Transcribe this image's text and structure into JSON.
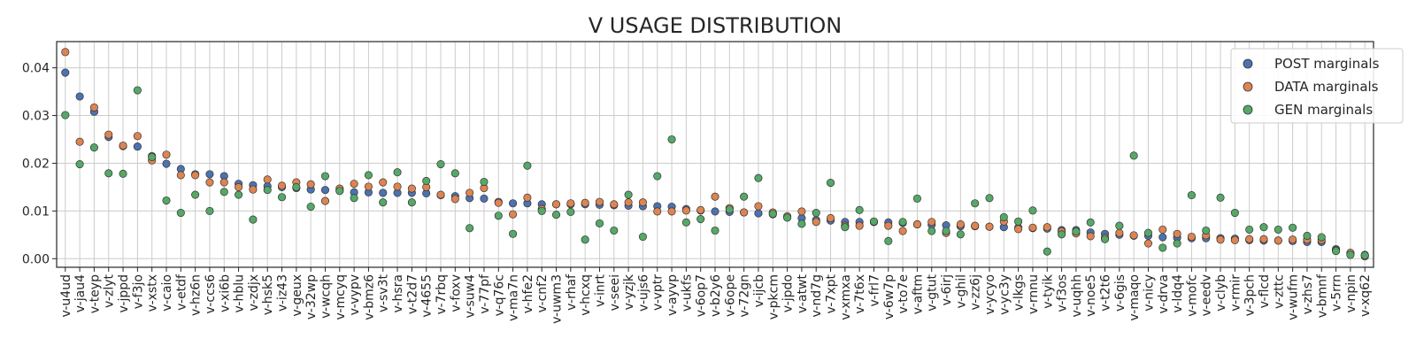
{
  "chart_data": {
    "type": "scatter",
    "title": "V USAGE DISTRIBUTION",
    "xlabel": "",
    "ylabel": "",
    "ylim": [
      -0.0018,
      0.0455
    ],
    "yticks": [
      "0.00",
      "0.01",
      "0.02",
      "0.03",
      "0.04"
    ],
    "grid": true,
    "legend_position": "top-right",
    "categories": [
      "v-u4ud",
      "v-jau4",
      "v-teyp",
      "v-zlyt",
      "v-jppd",
      "v-f3jo",
      "v-xstx",
      "v-caio",
      "v-etdf",
      "v-hz6n",
      "v-ccs6",
      "v-xi6b",
      "v-hblu",
      "v-zdjx",
      "v-hsk5",
      "v-iz43",
      "v-geux",
      "v-32wp",
      "v-wcqh",
      "v-mcyq",
      "v-vypv",
      "v-bmz6",
      "v-sv3t",
      "v-hsra",
      "v-t2d7",
      "v-4655",
      "v-7rbq",
      "v-foxv",
      "v-suw4",
      "v-77pf",
      "v-q76c",
      "v-ma7n",
      "v-hfe2",
      "v-cnf2",
      "v-uwm3",
      "v-rhaf",
      "v-hcxq",
      "v-inrt",
      "v-seei",
      "v-yzjk",
      "v-ujs6",
      "v-vptr",
      "v-ayvp",
      "v-ukfs",
      "v-6op7",
      "v-b2y6",
      "v-6ope",
      "v-72gn",
      "v-ijcb",
      "v-pkcm",
      "v-jpdo",
      "v-atwt",
      "v-nd7g",
      "v-7xpt",
      "v-xmxa",
      "v-7t6x",
      "v-frl7",
      "v-6w7p",
      "v-to7e",
      "v-aftm",
      "v-gtut",
      "v-6irj",
      "v-ghil",
      "v-zz6j",
      "v-ycyo",
      "v-yc3y",
      "v-lkgs",
      "v-rnnu",
      "v-tyik",
      "v-f3os",
      "v-uqhh",
      "v-noe5",
      "v-t2t6",
      "v-6gis",
      "v-maqo",
      "v-nicy",
      "v-drva",
      "v-ldq4",
      "v-mofc",
      "v-eedv",
      "v-clyb",
      "v-rmir",
      "v-3pch",
      "v-flcd",
      "v-zttc",
      "v-wufm",
      "v-zhs7",
      "v-bmnf",
      "v-5rrn",
      "v-npin",
      "v-xq62"
    ],
    "series": [
      {
        "name": "POST marginals",
        "color": "#4c72b0",
        "values": [
          0.039,
          0.034,
          0.0308,
          0.0255,
          0.0236,
          0.0235,
          0.0215,
          0.0199,
          0.0188,
          0.0177,
          0.0177,
          0.0173,
          0.0157,
          0.0154,
          0.0152,
          0.015,
          0.0148,
          0.0145,
          0.0144,
          0.0143,
          0.0139,
          0.0139,
          0.0138,
          0.0138,
          0.0138,
          0.0137,
          0.0133,
          0.0131,
          0.0127,
          0.0126,
          0.0119,
          0.0116,
          0.0116,
          0.0114,
          0.0114,
          0.0114,
          0.0114,
          0.0113,
          0.0112,
          0.0111,
          0.011,
          0.011,
          0.0109,
          0.0104,
          0.0101,
          0.0099,
          0.0098,
          0.0097,
          0.0095,
          0.0093,
          0.0087,
          0.0085,
          0.0081,
          0.008,
          0.0077,
          0.0077,
          0.0077,
          0.0076,
          0.0075,
          0.0072,
          0.0071,
          0.007,
          0.0068,
          0.0068,
          0.0067,
          0.0066,
          0.0065,
          0.0064,
          0.0063,
          0.006,
          0.006,
          0.0055,
          0.0052,
          0.005,
          0.0048,
          0.0048,
          0.0045,
          0.0044,
          0.0043,
          0.0043,
          0.0043,
          0.0042,
          0.0039,
          0.0038,
          0.0038,
          0.0037,
          0.0035,
          0.0035,
          0.002,
          0.0012,
          0.0008
        ]
      },
      {
        "name": "DATA marginals",
        "color": "#dd8452",
        "values": [
          0.0433,
          0.0245,
          0.0317,
          0.026,
          0.0237,
          0.0257,
          0.0206,
          0.0218,
          0.0175,
          0.0175,
          0.016,
          0.016,
          0.015,
          0.0145,
          0.0166,
          0.0153,
          0.016,
          0.0156,
          0.0121,
          0.0147,
          0.0157,
          0.0151,
          0.016,
          0.0151,
          0.0147,
          0.015,
          0.0134,
          0.0125,
          0.0138,
          0.0148,
          0.0117,
          0.0093,
          0.0128,
          0.0104,
          0.0114,
          0.0116,
          0.0117,
          0.0119,
          0.0114,
          0.0118,
          0.0118,
          0.0099,
          0.0099,
          0.0101,
          0.0102,
          0.013,
          0.0106,
          0.0097,
          0.011,
          0.0097,
          0.0089,
          0.0099,
          0.0077,
          0.0085,
          0.0069,
          0.0069,
          0.0077,
          0.0069,
          0.0058,
          0.0072,
          0.0077,
          0.0054,
          0.0072,
          0.0069,
          0.0067,
          0.0078,
          0.0062,
          0.0065,
          0.0066,
          0.0057,
          0.0053,
          0.0047,
          0.0044,
          0.0054,
          0.0049,
          0.0032,
          0.0061,
          0.0052,
          0.0046,
          0.0049,
          0.004,
          0.0039,
          0.0041,
          0.0041,
          0.0038,
          0.004,
          0.004,
          0.0039,
          0.0018,
          0.0012,
          0.0005
        ]
      },
      {
        "name": "GEN marginals",
        "color": "#55a868",
        "values": [
          0.0301,
          0.0198,
          0.0233,
          0.0179,
          0.0178,
          0.0353,
          0.0213,
          0.0122,
          0.0096,
          0.0134,
          0.01,
          0.014,
          0.0134,
          0.0082,
          0.0144,
          0.0129,
          0.015,
          0.0109,
          0.0173,
          0.0142,
          0.0127,
          0.0175,
          0.0118,
          0.0181,
          0.0118,
          0.0163,
          0.0198,
          0.0179,
          0.0064,
          0.0161,
          0.009,
          0.0052,
          0.0195,
          0.01,
          0.0092,
          0.0098,
          0.004,
          0.0074,
          0.0059,
          0.0134,
          0.0046,
          0.0173,
          0.025,
          0.0076,
          0.0083,
          0.0059,
          0.0103,
          0.013,
          0.0169,
          0.0094,
          0.0086,
          0.0073,
          0.0096,
          0.0159,
          0.0066,
          0.0102,
          0.0078,
          0.0037,
          0.0077,
          0.0126,
          0.0058,
          0.0058,
          0.0051,
          0.0116,
          0.0127,
          0.0087,
          0.0078,
          0.0101,
          0.0015,
          0.0051,
          0.0057,
          0.0076,
          0.0041,
          0.0069,
          0.0216,
          0.0054,
          0.0023,
          0.0032,
          0.0133,
          0.0059,
          0.0128,
          0.0096,
          0.0061,
          0.0066,
          0.0061,
          0.0065,
          0.0048,
          0.0045,
          0.0016,
          0.0008,
          0.0007
        ]
      }
    ]
  }
}
